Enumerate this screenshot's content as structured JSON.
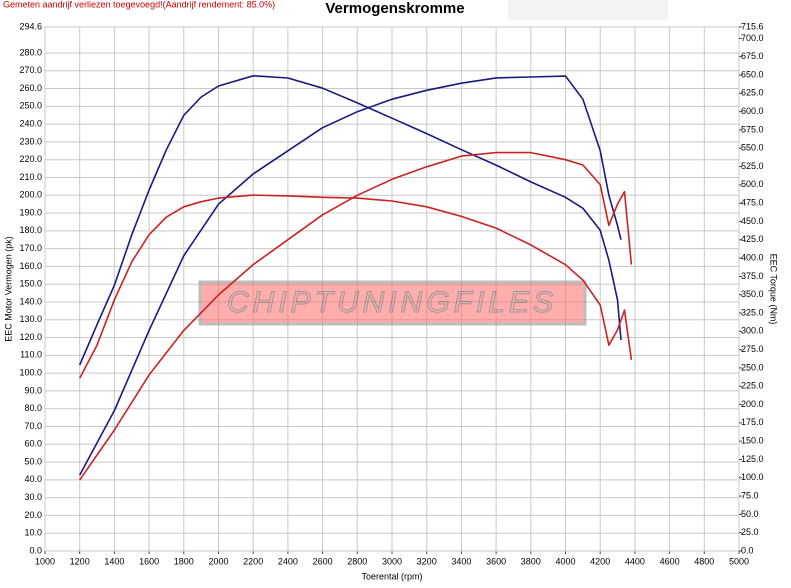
{
  "chart_data": {
    "type": "line",
    "title": "Vermogenskromme",
    "note": "Gemeten aandrijf verliezen toegevoegd!(Aandrijf rendement: 85.0%)",
    "xlabel": "Toerental (rpm)",
    "ylabel": "EEC Motor Vermogen (pk)",
    "y2label": "EEC Torque (Nm)",
    "watermark": "CHIPTUNINGFILES",
    "xlim": [
      1000,
      5000
    ],
    "xticks": [
      1000,
      1200,
      1400,
      1600,
      1800,
      2000,
      2200,
      2400,
      2600,
      2800,
      3000,
      3200,
      3400,
      3600,
      3800,
      4000,
      4200,
      4400,
      4600,
      4800,
      5000
    ],
    "ylim": [
      0,
      294.6
    ],
    "yticks": [
      {
        "value": 0,
        "label": "0.0"
      },
      {
        "value": 10,
        "label": "10.0"
      },
      {
        "value": 20,
        "label": "20.0"
      },
      {
        "value": 30,
        "label": "30.0"
      },
      {
        "value": 40,
        "label": "40.0"
      },
      {
        "value": 50,
        "label": "50.0"
      },
      {
        "value": 60,
        "label": "60.0"
      },
      {
        "value": 70,
        "label": "70.0"
      },
      {
        "value": 80,
        "label": "80.0"
      },
      {
        "value": 90,
        "label": "90.0"
      },
      {
        "value": 100,
        "label": "100.0"
      },
      {
        "value": 110,
        "label": "110.0"
      },
      {
        "value": 120,
        "label": "120.0"
      },
      {
        "value": 130,
        "label": "130.0"
      },
      {
        "value": 140,
        "label": "140.0"
      },
      {
        "value": 150,
        "label": "150.0"
      },
      {
        "value": 160,
        "label": "160.0"
      },
      {
        "value": 170,
        "label": "170.0"
      },
      {
        "value": 180,
        "label": "180.0"
      },
      {
        "value": 190,
        "label": "190.0"
      },
      {
        "value": 200,
        "label": "200.0"
      },
      {
        "value": 210,
        "label": "210.0"
      },
      {
        "value": 220,
        "label": "220.0"
      },
      {
        "value": 230,
        "label": "230.0"
      },
      {
        "value": 240,
        "label": "240.0"
      },
      {
        "value": 250,
        "label": "250.0"
      },
      {
        "value": 260,
        "label": "260.0"
      },
      {
        "value": 270,
        "label": "270.0"
      },
      {
        "value": 280,
        "label": "280.0"
      },
      294.6
    ],
    "y2lim": [
      0,
      715.6
    ],
    "y2ticks": [
      {
        "value": 0,
        "label": "0.0"
      },
      {
        "value": 25,
        "label": "25.0"
      },
      {
        "value": 50,
        "label": "50.0"
      },
      {
        "value": 75,
        "label": "75.0"
      },
      {
        "value": 100,
        "label": "100.0"
      },
      {
        "value": 125,
        "label": "125.0"
      },
      {
        "value": 150,
        "label": "150.0"
      },
      {
        "value": 175,
        "label": "175.0"
      },
      {
        "value": 200,
        "label": "200.0"
      },
      {
        "value": 225,
        "label": "225.0"
      },
      {
        "value": 250,
        "label": "250.0"
      },
      {
        "value": 275,
        "label": "275.0"
      },
      {
        "value": 300,
        "label": "300.0"
      },
      {
        "value": 325,
        "label": "325.0"
      },
      {
        "value": 350,
        "label": "350.0"
      },
      {
        "value": 375,
        "label": "375.0"
      },
      {
        "value": 400,
        "label": "400.0"
      },
      {
        "value": 425,
        "label": "425.0"
      },
      {
        "value": 450,
        "label": "450.0"
      },
      {
        "value": 475,
        "label": "475.0"
      },
      {
        "value": 500,
        "label": "500.0"
      },
      {
        "value": 525,
        "label": "525.0"
      },
      {
        "value": 550,
        "label": "550.0"
      },
      {
        "value": 575,
        "label": "575.0"
      },
      {
        "value": 600,
        "label": "600.0"
      },
      {
        "value": 625,
        "label": "625.0"
      },
      {
        "value": 650,
        "label": "650.0"
      },
      {
        "value": 675,
        "label": "675.0"
      },
      {
        "value": 700,
        "label": "700.0"
      },
      715.6
    ],
    "grid": true,
    "series": [
      {
        "color": "#1a1a80",
        "axis": "y2",
        "x": [
          1200,
          1300,
          1400,
          1500,
          1600,
          1700,
          1800,
          1900,
          2000,
          2200,
          2400,
          2600,
          2800,
          3000,
          3200,
          3400,
          3600,
          3800,
          4000,
          4100,
          4200,
          4250,
          4300,
          4320
        ],
        "values": [
          254,
          309,
          363,
          432,
          493,
          548,
          595,
          620,
          635,
          649,
          646,
          632,
          612,
          591,
          570,
          548,
          527,
          504,
          483,
          468,
          438,
          397,
          343,
          288
        ]
      },
      {
        "color": "#1a1a80",
        "x": [
          1200,
          1400,
          1600,
          1800,
          2000,
          2200,
          2400,
          2600,
          2800,
          3000,
          3200,
          3400,
          3600,
          3800,
          4000,
          4100,
          4200,
          4250,
          4300,
          4320
        ],
        "values": [
          42.7,
          79,
          124,
          166,
          195,
          212,
          225,
          238,
          247,
          254,
          259,
          263,
          266,
          266.5,
          267,
          254,
          225,
          200,
          183,
          175
        ]
      },
      {
        "color": "#cc2222",
        "axis": "y2",
        "x": [
          1200,
          1300,
          1400,
          1500,
          1600,
          1700,
          1800,
          1900,
          2000,
          2200,
          2400,
          2600,
          2800,
          3000,
          3200,
          3400,
          3600,
          3800,
          4000,
          4100,
          4200,
          4250,
          4300,
          4340,
          4380
        ],
        "values": [
          236,
          281,
          343,
          395,
          432,
          456,
          470,
          477,
          482,
          486,
          485,
          483,
          482,
          478,
          470,
          457,
          441,
          418,
          391,
          370,
          336,
          281,
          302,
          329,
          261
        ]
      },
      {
        "color": "#cc2222",
        "x": [
          1200,
          1400,
          1600,
          1800,
          2000,
          2200,
          2400,
          2600,
          2800,
          3000,
          3200,
          3400,
          3600,
          3800,
          4000,
          4100,
          4200,
          4250,
          4300,
          4340,
          4380
        ],
        "values": [
          40,
          68,
          99,
          124,
          144,
          161,
          175,
          189,
          200,
          209,
          216,
          222,
          224,
          224,
          220,
          217,
          206,
          183,
          195,
          202,
          161
        ]
      }
    ]
  }
}
